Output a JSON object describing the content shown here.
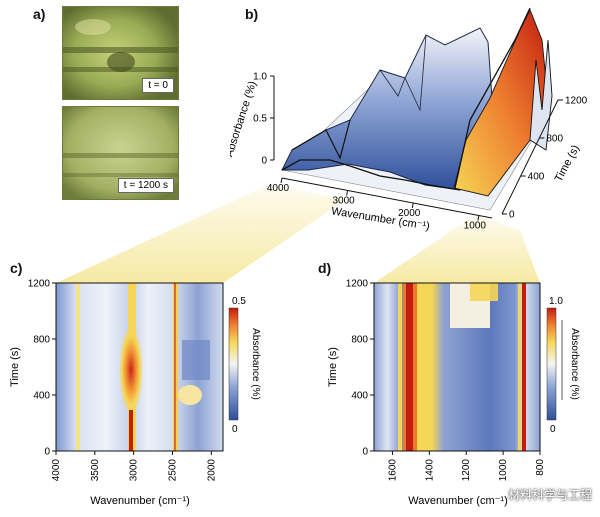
{
  "panels": {
    "a": "a)",
    "b": "b)",
    "c": "c)",
    "d": "d)"
  },
  "micrographs": {
    "top_label": "t = 0",
    "bottom_label": "t = 1200 s"
  },
  "watermark": "材料科学与工程",
  "colors": {
    "low": "#3a5fa8",
    "mid": "#f3f3f3",
    "high_yellow": "#f2d24a",
    "high_red": "#c81e10",
    "callout": "#f5e79a"
  },
  "chart_data": [
    {
      "id": "b",
      "type": "surface3d",
      "title": "",
      "xlabel": "Wavenumber (cm⁻¹)",
      "ylabel": "Absorbance (%)",
      "zlabel": "Time (s)",
      "x_ticks": [
        "4000",
        "3000",
        "2000",
        "1000"
      ],
      "y_ticks": [
        "0",
        "0.5",
        "1.0"
      ],
      "z_ticks": [
        "0",
        "400",
        "800",
        "1200"
      ],
      "xlim": [
        4000,
        800
      ],
      "ylim": [
        0,
        1.0
      ],
      "zlim": [
        0,
        1200
      ]
    },
    {
      "id": "c",
      "type": "heatmap",
      "xlabel": "Wavenumber (cm⁻¹)",
      "ylabel": "Time (s)",
      "x_ticks": [
        "4000",
        "3500",
        "3000",
        "2500",
        "2000"
      ],
      "y_ticks": [
        "0",
        "400",
        "800",
        "1200"
      ],
      "xlim": [
        4000,
        1850
      ],
      "ylim": [
        0,
        1200
      ],
      "colorbar": {
        "label": "Absorbance (%)",
        "min": "0",
        "max": "0.5",
        "range": [
          0,
          0.5
        ]
      }
    },
    {
      "id": "d",
      "type": "heatmap",
      "xlabel": "Wavenumber (cm⁻¹)",
      "ylabel": "Time (s)",
      "x_ticks": [
        "1600",
        "1400",
        "1200",
        "1000",
        "800"
      ],
      "y_ticks": [
        "0",
        "400",
        "800",
        "1200"
      ],
      "xlim": [
        1700,
        800
      ],
      "ylim": [
        0,
        1200
      ],
      "colorbar": {
        "label": "Absorbance (%)",
        "min": "0",
        "max": "1.0",
        "range": [
          0,
          1.0
        ]
      }
    }
  ]
}
